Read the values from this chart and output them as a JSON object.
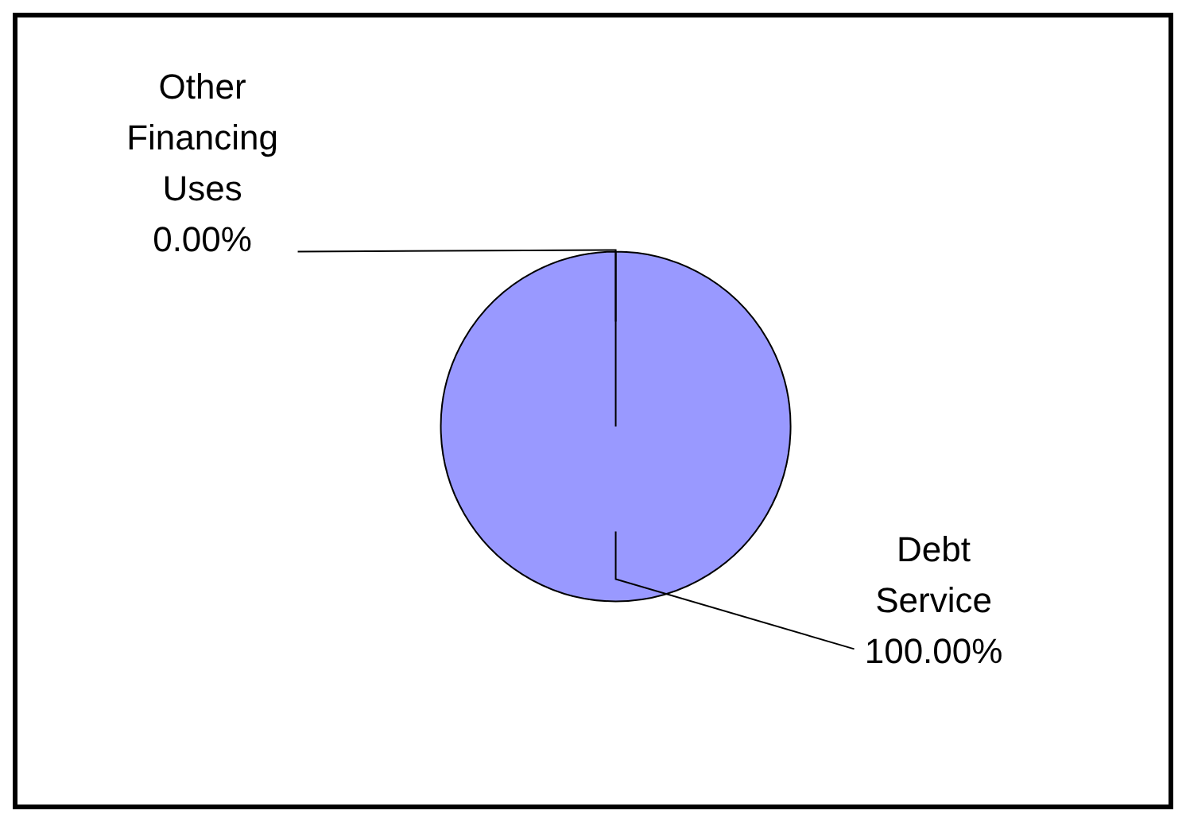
{
  "chart_data": {
    "type": "pie",
    "categories": [
      "Other Financing Uses",
      "Debt Service"
    ],
    "values": [
      0,
      100
    ],
    "colors": [
      "#993366",
      "#9999ff"
    ],
    "value_labels": [
      "0.00%",
      "100.00%"
    ],
    "legend": false
  }
}
